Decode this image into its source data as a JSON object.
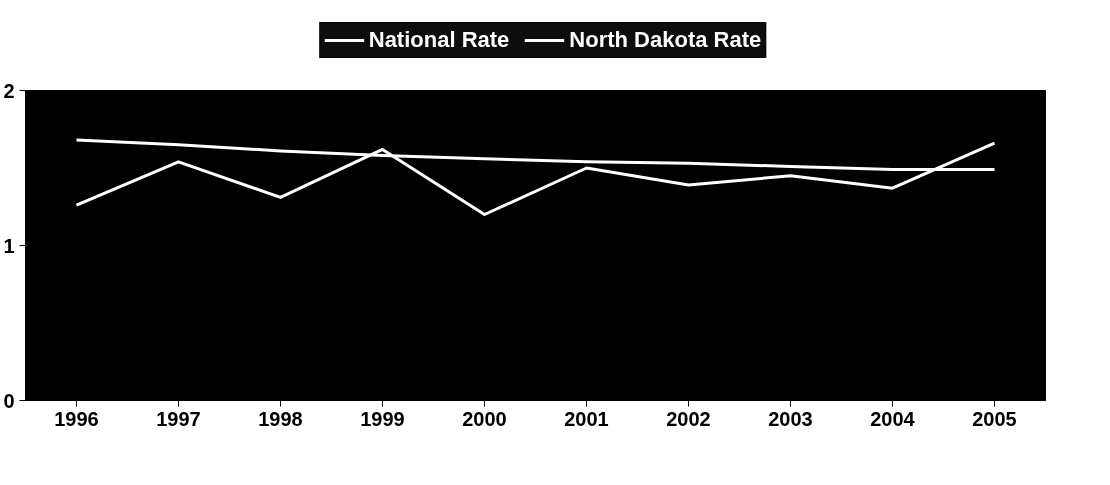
{
  "chart_data": {
    "type": "line",
    "categories": [
      "1996",
      "1997",
      "1998",
      "1999",
      "2000",
      "2001",
      "2002",
      "2003",
      "2004",
      "2005"
    ],
    "series": [
      {
        "name": "National Rate",
        "color": "#ffffff",
        "values": [
          1.68,
          1.65,
          1.61,
          1.58,
          1.56,
          1.54,
          1.53,
          1.51,
          1.49,
          1.49
        ]
      },
      {
        "name": "North Dakota Rate",
        "color": "#ffffff",
        "values": [
          1.26,
          1.54,
          1.31,
          1.62,
          1.2,
          1.5,
          1.39,
          1.45,
          1.37,
          1.66
        ]
      }
    ],
    "ylim": [
      0,
      2
    ],
    "yticks": [
      0,
      1,
      2
    ],
    "grid": false,
    "legend": "top",
    "marker": "none",
    "line_style": "solid"
  }
}
